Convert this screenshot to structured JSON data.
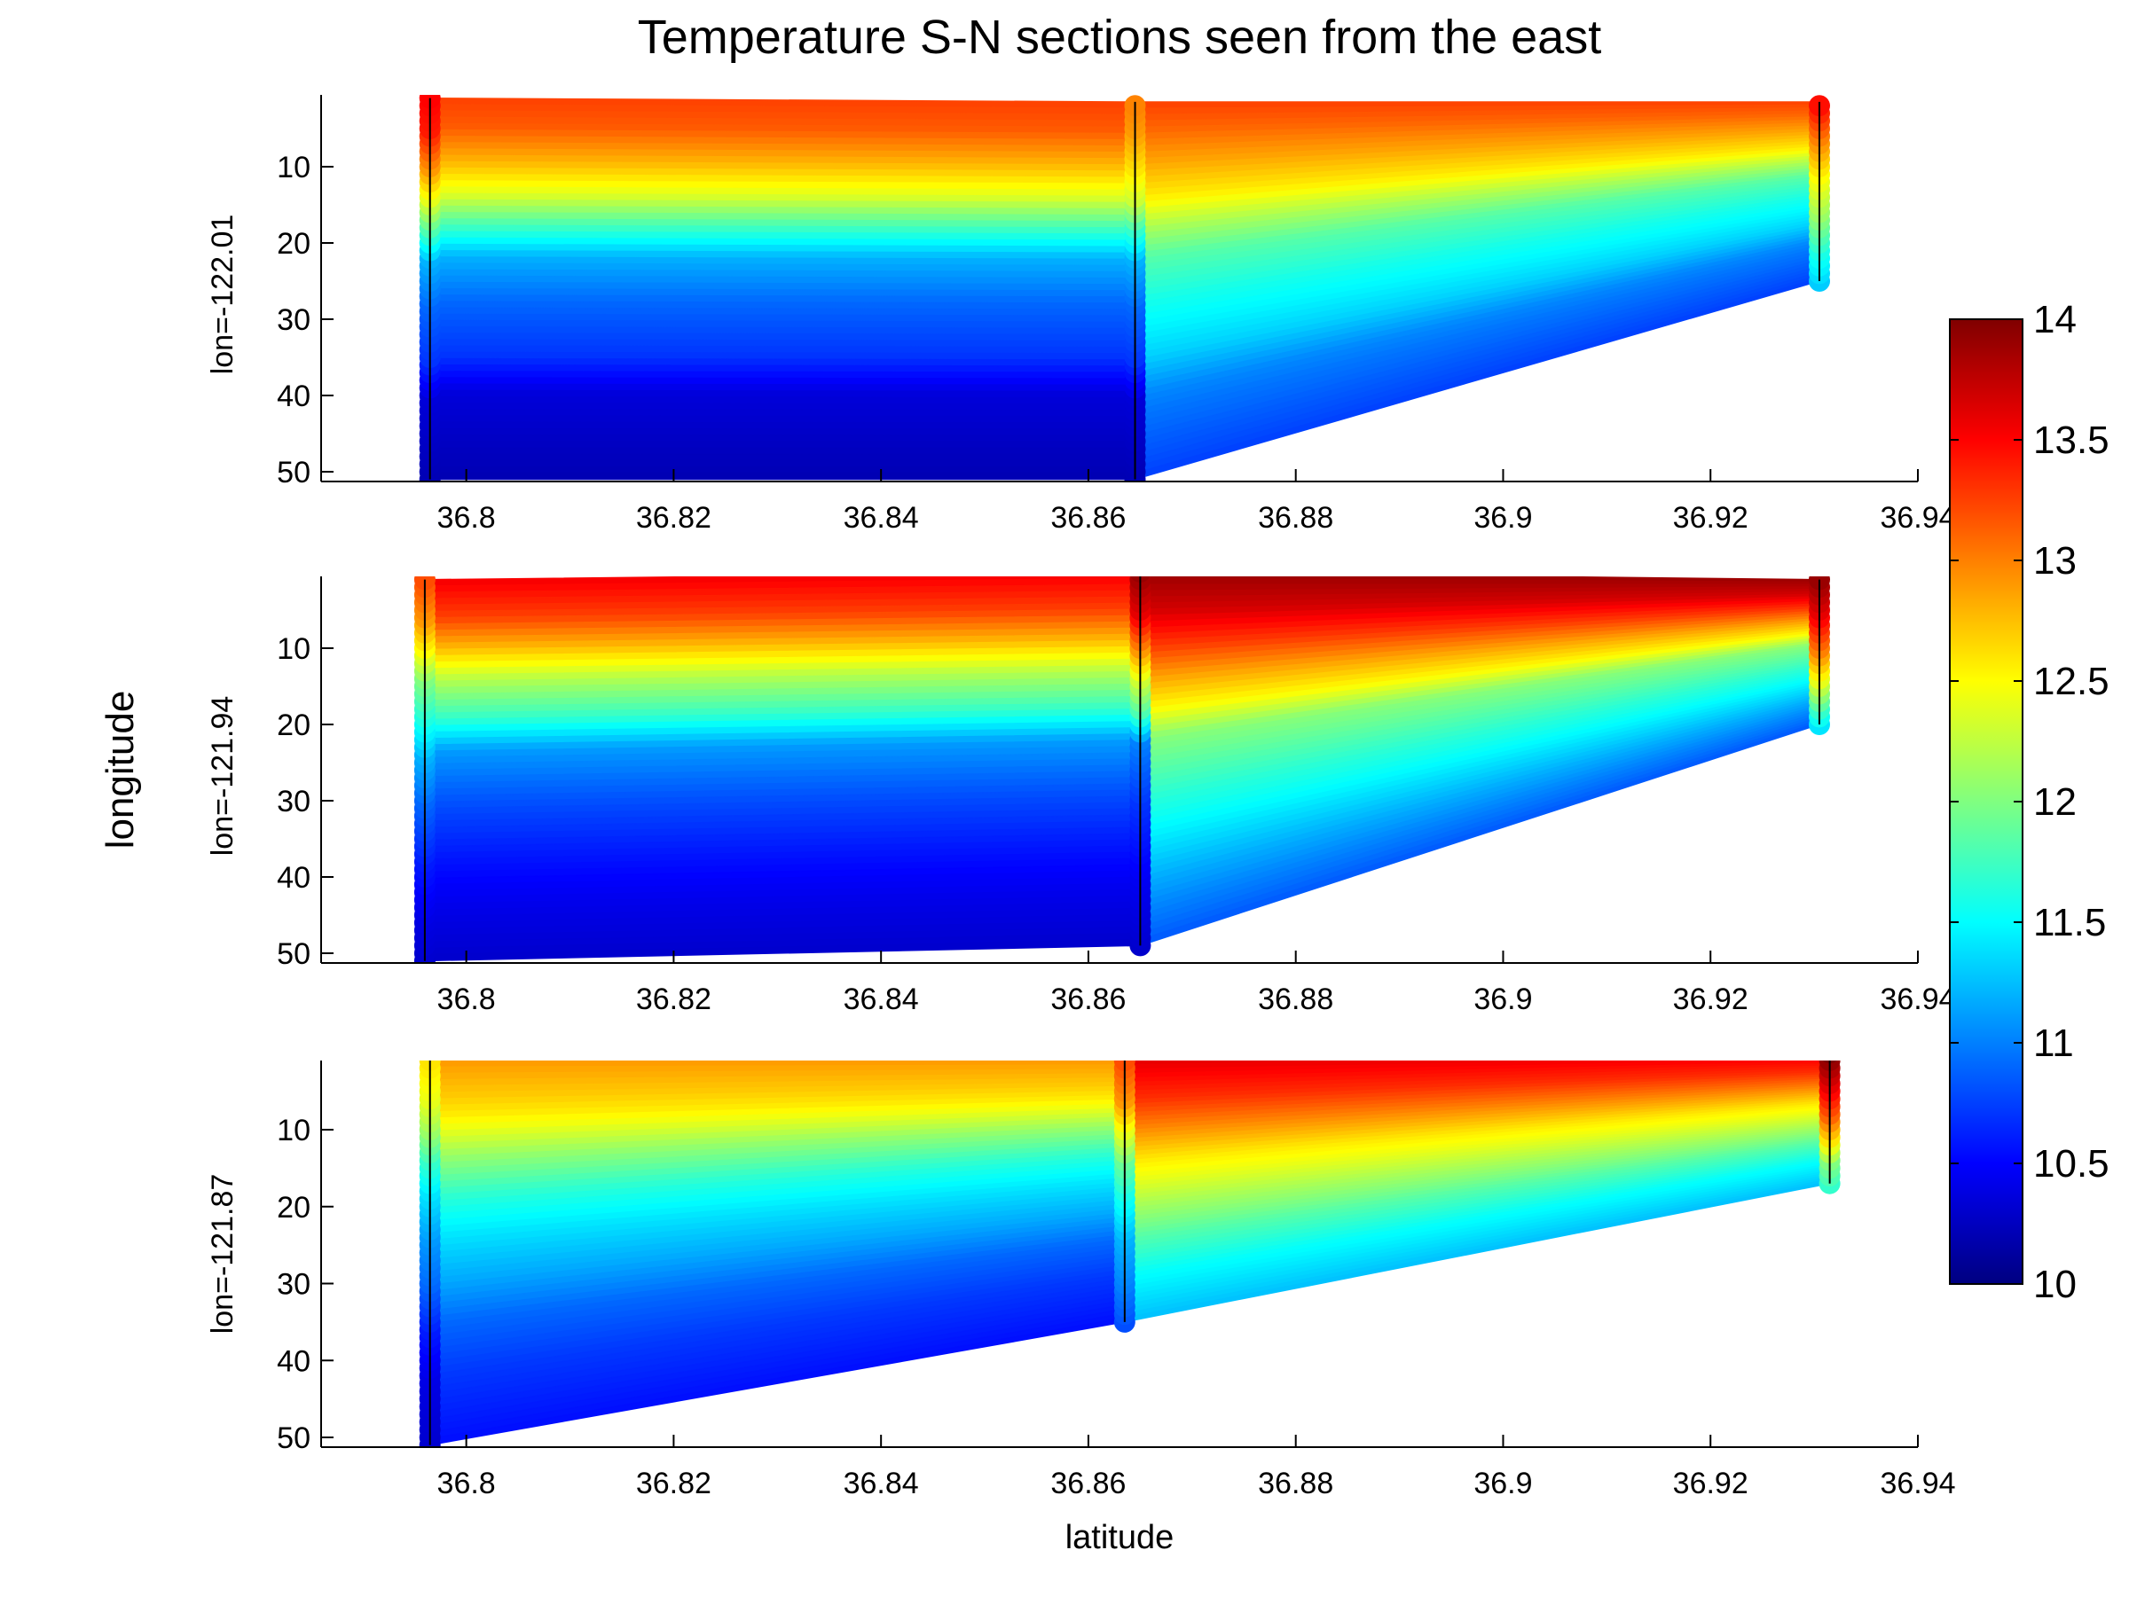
{
  "figure": {
    "title": "Temperature S-N sections seen from the east",
    "supylabel": "longitude",
    "xlabel": "latitude"
  },
  "colorbar": {
    "min": 10,
    "max": 14,
    "tick_labels": [
      "14",
      "13.5",
      "13",
      "12.5",
      "12",
      "11.5",
      "11",
      "10.5",
      "10"
    ],
    "colormap": "jet"
  },
  "chart_data": [
    {
      "type": "heatmap",
      "ylabel": "lon=-122.01",
      "xlim": [
        36.786,
        36.94
      ],
      "ylim": [
        52,
        0
      ],
      "x_ticks": [
        "36.8",
        "36.82",
        "36.84",
        "36.86",
        "36.88",
        "36.9",
        "36.92",
        "36.94"
      ],
      "y_ticks": [
        "10",
        "20",
        "30",
        "40",
        "50"
      ],
      "stations": [
        {
          "lat": 36.7965,
          "top": 1,
          "bottom": 51,
          "profile": [
            [
              1,
              13.5
            ],
            [
              5,
              13.4
            ],
            [
              10,
              12.9
            ],
            [
              14,
              12.4
            ],
            [
              18,
              11.8
            ],
            [
              22,
              11.2
            ],
            [
              28,
              10.9
            ],
            [
              35,
              10.7
            ],
            [
              40,
              10.35
            ],
            [
              51,
              10.2
            ]
          ]
        },
        {
          "lat": 36.8645,
          "top": 1.5,
          "bottom": 51,
          "profile": [
            [
              1.5,
              13.0
            ],
            [
              5,
              12.9
            ],
            [
              10,
              12.6
            ],
            [
              14,
              12.3
            ],
            [
              18,
              11.7
            ],
            [
              22,
              11.2
            ],
            [
              28,
              10.9
            ],
            [
              35,
              10.7
            ],
            [
              40,
              10.35
            ],
            [
              51,
              10.2
            ]
          ]
        },
        {
          "lat": 36.9305,
          "top": 1.5,
          "bottom": 25,
          "profile": [
            [
              1.5,
              13.5
            ],
            [
              6,
              13.0
            ],
            [
              11,
              12.5
            ],
            [
              16,
              12.1
            ],
            [
              21,
              11.6
            ],
            [
              25,
              11.3
            ]
          ]
        }
      ]
    },
    {
      "type": "heatmap",
      "ylabel": "lon=-121.94",
      "xlim": [
        36.786,
        36.94
      ],
      "ylim": [
        52,
        0
      ],
      "x_ticks": [
        "36.8",
        "36.82",
        "36.84",
        "36.86",
        "36.88",
        "36.9",
        "36.92",
        "36.94"
      ],
      "y_ticks": [
        "10",
        "20",
        "30",
        "40",
        "50"
      ],
      "stations": [
        {
          "lat": 36.796,
          "top": 1,
          "bottom": 51,
          "profile": [
            [
              1,
              13.2
            ],
            [
              6,
              12.9
            ],
            [
              10,
              12.5
            ],
            [
              14,
              12.0
            ],
            [
              18,
              11.7
            ],
            [
              24,
              11.2
            ],
            [
              30,
              10.9
            ],
            [
              38,
              10.6
            ],
            [
              45,
              10.4
            ],
            [
              51,
              10.3
            ]
          ]
        },
        {
          "lat": 36.865,
          "top": 0,
          "bottom": 49,
          "profile": [
            [
              0,
              13.9
            ],
            [
              5,
              13.6
            ],
            [
              10,
              12.9
            ],
            [
              14,
              12.3
            ],
            [
              18,
              11.8
            ],
            [
              22,
              11.0
            ],
            [
              30,
              10.7
            ],
            [
              40,
              10.45
            ],
            [
              49,
              10.3
            ]
          ]
        },
        {
          "lat": 36.9305,
          "top": 1,
          "bottom": 20,
          "profile": [
            [
              1,
              13.9
            ],
            [
              5,
              13.6
            ],
            [
              10,
              13.0
            ],
            [
              14,
              12.4
            ],
            [
              18,
              11.7
            ],
            [
              20,
              11.4
            ]
          ]
        }
      ]
    },
    {
      "type": "heatmap",
      "ylabel": "lon=-121.87",
      "xlim": [
        36.786,
        36.94
      ],
      "ylim": [
        52,
        0
      ],
      "x_ticks": [
        "36.8",
        "36.82",
        "36.84",
        "36.86",
        "36.88",
        "36.9",
        "36.92",
        "36.94"
      ],
      "y_ticks": [
        "10",
        "20",
        "30",
        "40",
        "50"
      ],
      "stations": [
        {
          "lat": 36.7965,
          "top": 1,
          "bottom": 51,
          "profile": [
            [
              1,
              12.6
            ],
            [
              6,
              12.4
            ],
            [
              10,
              12.1
            ],
            [
              14,
              11.7
            ],
            [
              18,
              11.4
            ],
            [
              24,
              11.1
            ],
            [
              30,
              10.9
            ],
            [
              36,
              10.6
            ],
            [
              42,
              10.4
            ],
            [
              51,
              10.3
            ]
          ]
        },
        {
          "lat": 36.8635,
          "top": 1,
          "bottom": 35,
          "profile": [
            [
              1,
              13.2
            ],
            [
              6,
              12.9
            ],
            [
              10,
              12.4
            ],
            [
              14,
              11.9
            ],
            [
              18,
              11.6
            ],
            [
              24,
              11.2
            ],
            [
              30,
              11.0
            ],
            [
              35,
              10.8
            ]
          ]
        },
        {
          "lat": 36.9315,
          "top": 0,
          "bottom": 17,
          "profile": [
            [
              0,
              14.0
            ],
            [
              4,
              13.6
            ],
            [
              8,
              13.1
            ],
            [
              11,
              12.6
            ],
            [
              14,
              12.0
            ],
            [
              17,
              11.7
            ]
          ]
        }
      ]
    }
  ]
}
